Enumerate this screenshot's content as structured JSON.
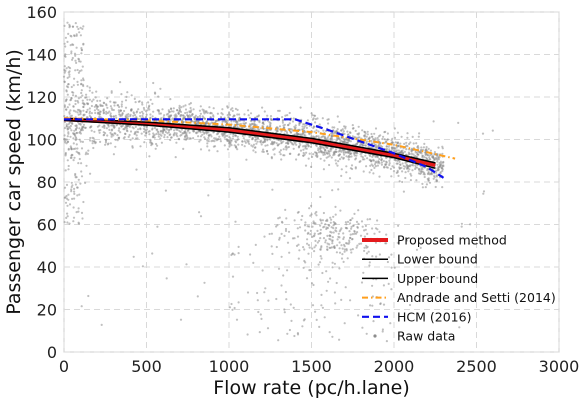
{
  "chart_data": {
    "type": "scatter",
    "xlabel": "Flow rate (pc/h.lane)",
    "ylabel": "Passenger car speed (km/h)",
    "xlim": [
      0,
      3000
    ],
    "ylim": [
      0,
      160
    ],
    "xticks": [
      0,
      500,
      1000,
      1500,
      2000,
      2500,
      3000
    ],
    "yticks": [
      0,
      20,
      40,
      60,
      80,
      100,
      120,
      140,
      160
    ],
    "grid": true,
    "legend_position": "lower-right",
    "series": [
      {
        "name": "Proposed method",
        "kind": "line",
        "color": "#e41a1c",
        "dash": "solid",
        "x": [
          0,
          500,
          1000,
          1500,
          2000,
          2250
        ],
        "y": [
          109.5,
          107.5,
          104.5,
          99.5,
          92.5,
          88.0
        ]
      },
      {
        "name": "Lower bound",
        "kind": "line",
        "color": "#000000",
        "dash": "solid",
        "x": [
          0,
          500,
          1000,
          1500,
          2000,
          2250
        ],
        "y": [
          109.0,
          106.8,
          103.5,
          98.5,
          91.5,
          86.5
        ]
      },
      {
        "name": "Upper bound",
        "kind": "line",
        "color": "#000000",
        "dash": "solid",
        "x": [
          0,
          500,
          1000,
          1500,
          2000,
          2250
        ],
        "y": [
          110.0,
          108.2,
          105.5,
          100.5,
          93.5,
          89.0
        ]
      },
      {
        "name": "Andrade and Setti (2014)",
        "kind": "line",
        "color": "#ff9f1c",
        "dash": "dashdot",
        "x": [
          0,
          500,
          1000,
          1500,
          2000,
          2370
        ],
        "y": [
          110.0,
          109.0,
          107.0,
          103.5,
          97.5,
          91.0
        ]
      },
      {
        "name": "HCM (2016)",
        "kind": "line",
        "color": "#1010ee",
        "dash": "dashed",
        "x": [
          0,
          1400,
          1600,
          1800,
          2000,
          2200,
          2300
        ],
        "y": [
          109.5,
          109.5,
          104.5,
          99.0,
          93.5,
          87.0,
          82.0
        ]
      },
      {
        "name": "Raw data",
        "kind": "scatter",
        "color": "#8c8c8c"
      }
    ],
    "raw_data_clusters": [
      {
        "region": "main uncongested band",
        "x_range": [
          0,
          2300
        ],
        "y_center_at_x0": 110,
        "y_center_at_xmax": 86
      },
      {
        "region": "congested cluster",
        "x_center": 1600,
        "y_center": 55
      },
      {
        "region": "low-speed tail",
        "x_range": [
          1000,
          2000
        ],
        "y_range": [
          5,
          50
        ]
      }
    ]
  }
}
